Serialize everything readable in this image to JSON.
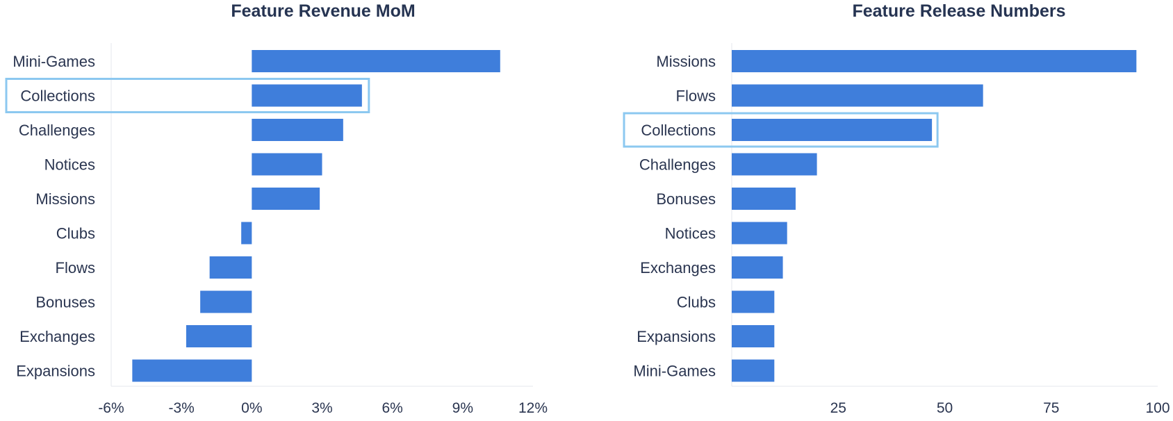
{
  "chart_data": [
    {
      "type": "bar",
      "orientation": "horizontal",
      "title": "Feature Revenue MoM",
      "xlabel": "",
      "ylabel": "",
      "categories": [
        "Mini-Games",
        "Collections",
        "Challenges",
        "Notices",
        "Missions",
        "Clubs",
        "Flows",
        "Bonuses",
        "Exchanges",
        "Expansions"
      ],
      "values": [
        10.6,
        4.7,
        3.9,
        3.0,
        2.9,
        -0.45,
        -1.8,
        -2.2,
        -2.8,
        -5.1
      ],
      "unit": "%",
      "xlim": [
        -6,
        12
      ],
      "ticks": [
        -6,
        -3,
        0,
        3,
        6,
        9,
        12
      ],
      "tick_labels": [
        "-6%",
        "-3%",
        "0%",
        "3%",
        "6%",
        "9%",
        "12%"
      ],
      "highlight": "Collections",
      "grid": false,
      "bar_color": "#3f7edb",
      "highlight_color": "#8cc8f0"
    },
    {
      "type": "bar",
      "orientation": "horizontal",
      "title": "Feature Release Numbers",
      "xlabel": "",
      "ylabel": "",
      "categories": [
        "Missions",
        "Flows",
        "Collections",
        "Challenges",
        "Bonuses",
        "Notices",
        "Exchanges",
        "Clubs",
        "Expansions",
        "Mini-Games"
      ],
      "values": [
        95,
        59,
        47,
        20,
        15,
        13,
        12,
        10,
        10,
        10
      ],
      "xlim": [
        0,
        100
      ],
      "ticks": [
        25,
        50,
        75,
        100
      ],
      "tick_labels": [
        "25",
        "50",
        "75",
        "100"
      ],
      "highlight": "Collections",
      "grid": false,
      "bar_color": "#3f7edb",
      "highlight_color": "#8cc8f0"
    }
  ]
}
